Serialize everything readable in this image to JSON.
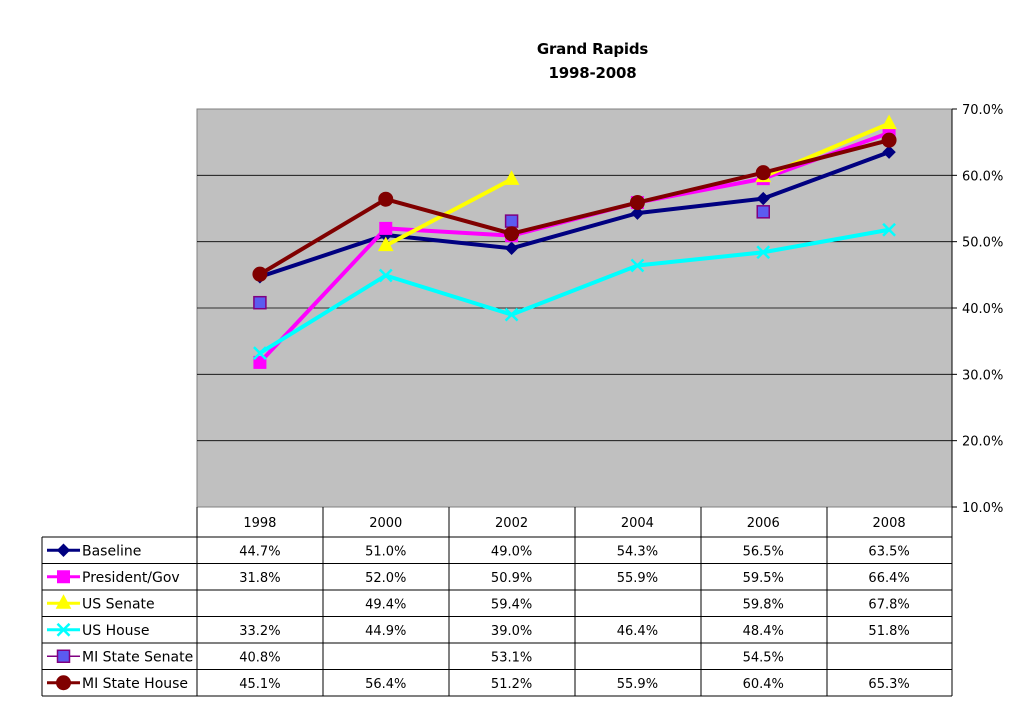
{
  "chart_data": {
    "type": "line",
    "title": "Grand Rapids",
    "subtitle": "1998-2008",
    "categories": [
      "1998",
      "2000",
      "2002",
      "2004",
      "2006",
      "2008"
    ],
    "ylim": [
      10,
      70
    ],
    "yticks": [
      "10.0%",
      "20.0%",
      "30.0%",
      "40.0%",
      "50.0%",
      "60.0%",
      "70.0%"
    ],
    "grid": true,
    "legend": "data table below the plot",
    "plot_background": "#C0C0C0",
    "series": [
      {
        "name": "Baseline",
        "color": "#000080",
        "marker": "diamond",
        "values": [
          44.7,
          51.0,
          49.0,
          54.3,
          56.5,
          63.5
        ],
        "labels": [
          "44.7%",
          "51.0%",
          "49.0%",
          "54.3%",
          "56.5%",
          "63.5%"
        ]
      },
      {
        "name": "President/Gov",
        "color": "#FF00FF",
        "marker": "square",
        "values": [
          31.8,
          52.0,
          50.9,
          55.9,
          59.5,
          66.4
        ],
        "labels": [
          "31.8%",
          "52.0%",
          "50.9%",
          "55.9%",
          "59.5%",
          "66.4%"
        ]
      },
      {
        "name": "US Senate",
        "color": "#FFFF00",
        "marker": "triangle",
        "values": [
          null,
          49.4,
          59.4,
          null,
          59.8,
          67.8
        ],
        "labels": [
          "",
          "49.4%",
          "59.4%",
          "",
          "59.8%",
          "67.8%"
        ]
      },
      {
        "name": "US House",
        "color": "#00FFFF",
        "marker": "x",
        "values": [
          33.2,
          44.9,
          39.0,
          46.4,
          48.4,
          51.8
        ],
        "labels": [
          "33.2%",
          "44.9%",
          "39.0%",
          "46.4%",
          "48.4%",
          "51.8%"
        ]
      },
      {
        "name": "MI State Senate",
        "color": "#800080",
        "marker": "square-blue",
        "values": [
          40.8,
          null,
          53.1,
          null,
          54.5,
          null
        ],
        "labels": [
          "40.8%",
          "",
          "53.1%",
          "",
          "54.5%",
          ""
        ]
      },
      {
        "name": "MI State House",
        "color": "#800000",
        "marker": "circle",
        "values": [
          45.1,
          56.4,
          51.2,
          55.9,
          60.4,
          65.3
        ],
        "labels": [
          "45.1%",
          "56.4%",
          "51.2%",
          "55.9%",
          "60.4%",
          "65.3%"
        ]
      }
    ]
  }
}
